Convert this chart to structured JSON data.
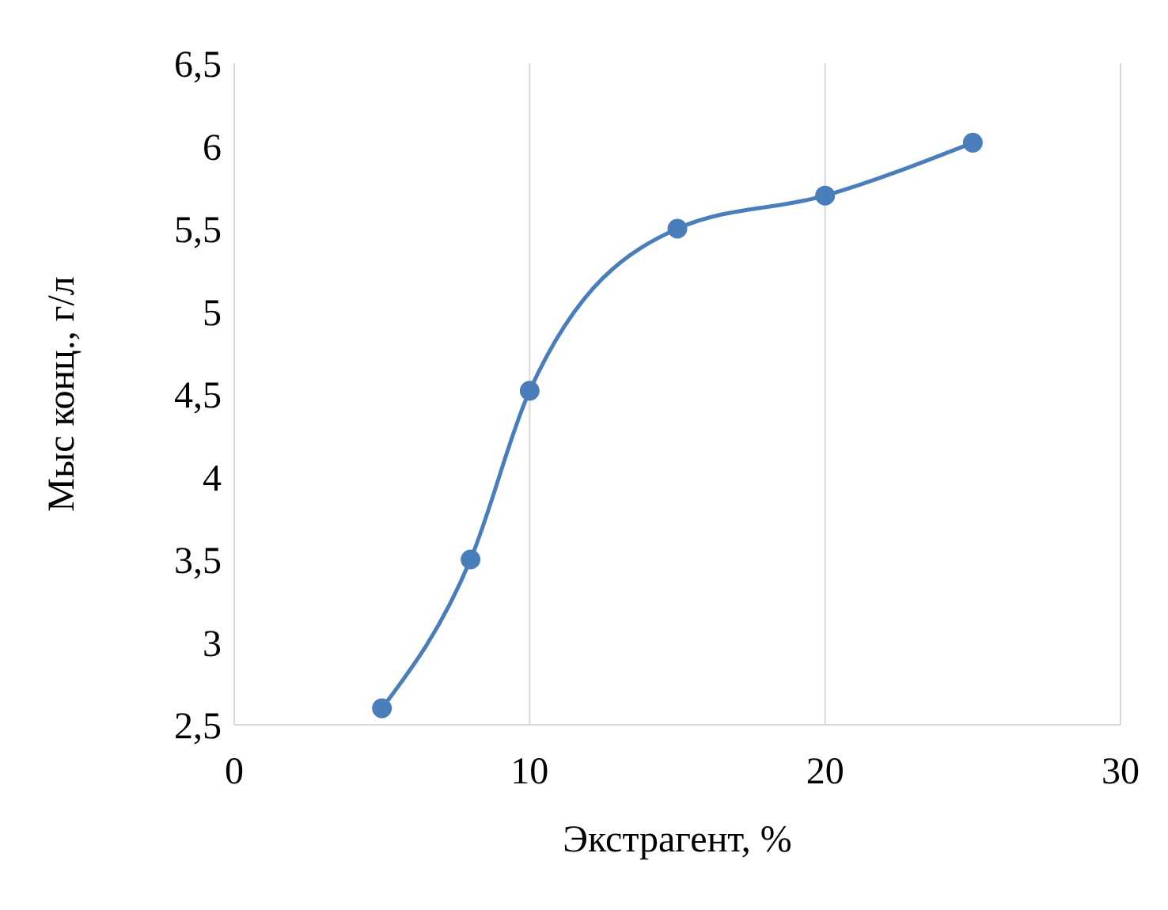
{
  "chart_data": {
    "type": "line",
    "xlabel": "Экстрагент, %",
    "ylabel": "Мыс конц., г/л",
    "series": [
      {
        "color": "#4a7ebb",
        "x": [
          5,
          8,
          10,
          15,
          20,
          25
        ],
        "values": [
          2.6,
          3.5,
          4.52,
          5.5,
          5.7,
          6.02
        ]
      }
    ],
    "xlim": [
      0,
      30
    ],
    "xticks": [
      0,
      10,
      20,
      30
    ],
    "ylim": [
      2.5,
      6.5
    ],
    "yticks": [
      {
        "value": 2.5,
        "label": "2,5"
      },
      3,
      {
        "value": 3.5,
        "label": "3,5"
      },
      4,
      {
        "value": 4.5,
        "label": "4,5"
      },
      5,
      {
        "value": 5.5,
        "label": "5,5"
      },
      6,
      {
        "value": 6.5,
        "label": "6,5"
      }
    ],
    "grid": "x",
    "marker": "circle",
    "line_style": "solid"
  }
}
